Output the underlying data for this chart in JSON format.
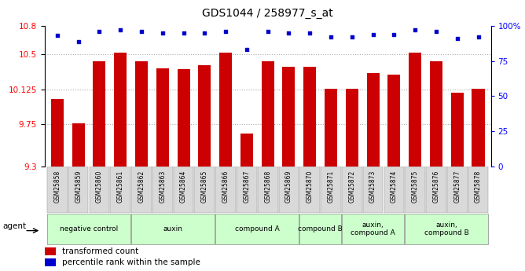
{
  "title": "GDS1044 / 258977_s_at",
  "samples": [
    "GSM25858",
    "GSM25859",
    "GSM25860",
    "GSM25861",
    "GSM25862",
    "GSM25863",
    "GSM25864",
    "GSM25865",
    "GSM25866",
    "GSM25867",
    "GSM25868",
    "GSM25869",
    "GSM25870",
    "GSM25871",
    "GSM25872",
    "GSM25873",
    "GSM25874",
    "GSM25875",
    "GSM25876",
    "GSM25877",
    "GSM25878"
  ],
  "bar_values": [
    10.02,
    9.76,
    10.42,
    10.51,
    10.42,
    10.35,
    10.34,
    10.38,
    10.51,
    9.65,
    10.42,
    10.36,
    10.36,
    10.13,
    10.13,
    10.3,
    10.28,
    10.51,
    10.42,
    10.09,
    10.13
  ],
  "percentile_values": [
    93,
    89,
    96,
    97,
    96,
    95,
    95,
    95,
    96,
    83,
    96,
    95,
    95,
    92,
    92,
    94,
    94,
    97,
    96,
    91,
    92
  ],
  "bar_color": "#cc0000",
  "dot_color": "#0000cc",
  "ylim_left": [
    9.3,
    10.8
  ],
  "ylim_right": [
    0,
    100
  ],
  "yticks_left": [
    9.3,
    9.75,
    10.125,
    10.5,
    10.8
  ],
  "ytick_labels_left": [
    "9.3",
    "9.75",
    "10.125",
    "10.5",
    "10.8"
  ],
  "yticks_right": [
    0,
    25,
    50,
    75,
    100
  ],
  "ytick_labels_right": [
    "0",
    "25",
    "50",
    "75",
    "100%"
  ],
  "groups": [
    {
      "label": "negative control",
      "start": 0,
      "end": 3,
      "color": "#ccffcc"
    },
    {
      "label": "auxin",
      "start": 4,
      "end": 7,
      "color": "#ccffcc"
    },
    {
      "label": "compound A",
      "start": 8,
      "end": 11,
      "color": "#ccffcc"
    },
    {
      "label": "compound B",
      "start": 12,
      "end": 13,
      "color": "#ccffcc"
    },
    {
      "label": "auxin,\ncompound A",
      "start": 14,
      "end": 16,
      "color": "#ccffcc"
    },
    {
      "label": "auxin,\ncompound B",
      "start": 17,
      "end": 20,
      "color": "#ccffcc"
    }
  ],
  "legend_bar_label": "transformed count",
  "legend_dot_label": "percentile rank within the sample",
  "grid_color": "#aaaaaa",
  "title_fontsize": 10,
  "tick_fontsize": 7.5,
  "bar_width": 0.6
}
